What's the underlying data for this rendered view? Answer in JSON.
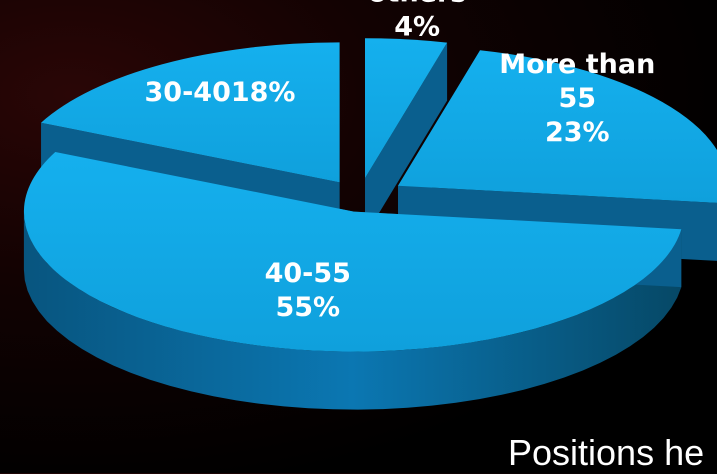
{
  "chart_data": {
    "type": "pie",
    "categories": [
      "others",
      "More than 55",
      "40-55",
      "30-40"
    ],
    "values": [
      4,
      23,
      55,
      18
    ],
    "slices": [
      {
        "name": "others",
        "value": 4,
        "label_lines": [
          "others",
          "4%"
        ]
      },
      {
        "name": "More than 55",
        "value": 23,
        "label_lines": [
          "More than",
          "55",
          "23%"
        ]
      },
      {
        "name": "40-55",
        "value": 55,
        "label_lines": [
          "40-55",
          "55%"
        ]
      },
      {
        "name": "30-40",
        "value": 18,
        "label_lines": [
          "30-4018%"
        ]
      }
    ],
    "exploded": true,
    "three_d": true,
    "colors": {
      "top": "#12a8e8",
      "side": "#0b6fa6",
      "label": "#ffffff"
    }
  },
  "caption": "Positions he"
}
